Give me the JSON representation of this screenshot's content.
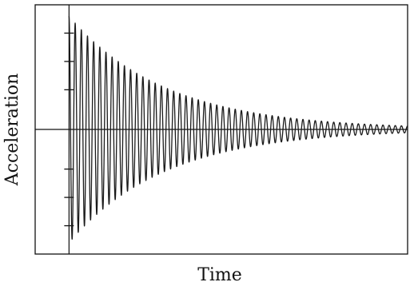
{
  "chart_data": {
    "type": "line",
    "title": "",
    "xlabel": "Time",
    "ylabel": "Acceleration",
    "xlim": [
      -0.1,
      1.0
    ],
    "ylim": [
      -1.1,
      1.1
    ],
    "grid": false,
    "legend": "none",
    "series": [
      {
        "color": "#1a1a1a",
        "cycles": 55,
        "initial_amplitude": 1.0,
        "final_amplitude": 0.03,
        "start_x": 0.0,
        "end_x": 1.0
      }
    ],
    "ytick_values": [
      -0.85,
      -0.6,
      -0.35,
      0.35,
      0.6,
      0.85
    ]
  }
}
